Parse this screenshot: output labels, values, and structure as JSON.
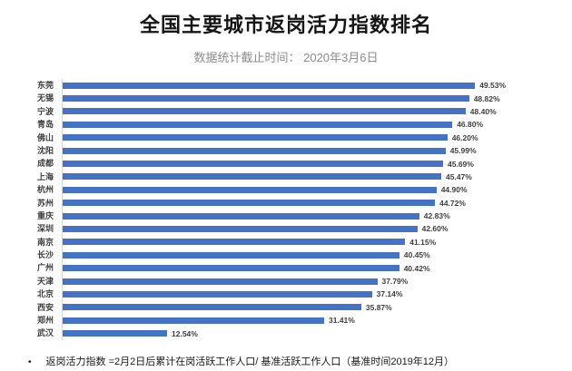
{
  "header": {
    "title": "全国主要城市返岗活力指数排名",
    "subtitle": "数据统计截止时间：  2020年3月6日"
  },
  "chart_data": {
    "type": "bar",
    "orientation": "horizontal",
    "title": "全国主要城市返岗活力指数排名",
    "subtitle": "数据统计截止时间：  2020年3月6日",
    "categories": [
      "东莞",
      "无锡",
      "宁波",
      "青岛",
      "佛山",
      "沈阳",
      "成都",
      "上海",
      "杭州",
      "苏州",
      "重庆",
      "深圳",
      "南京",
      "长沙",
      "广州",
      "天津",
      "北京",
      "西安",
      "郑州",
      "武汉"
    ],
    "values": [
      49.53,
      48.82,
      48.4,
      46.8,
      46.2,
      45.99,
      45.69,
      45.47,
      44.9,
      44.72,
      42.83,
      42.6,
      41.15,
      40.45,
      40.42,
      37.79,
      37.14,
      35.87,
      31.41,
      12.54
    ],
    "value_labels": [
      "49.53%",
      "48.82%",
      "48.40%",
      "46.80%",
      "46.20%",
      "45.99%",
      "45.69%",
      "45.47%",
      "44.90%",
      "44.72%",
      "42.83%",
      "42.60%",
      "41.15%",
      "40.45%",
      "40.42%",
      "37.79%",
      "37.14%",
      "35.87%",
      "31.41%",
      "12.54%"
    ],
    "xlabel": "",
    "ylabel": "",
    "xlim": [
      0,
      55
    ],
    "grid": false,
    "legend": false,
    "data_labels": "outside-end"
  },
  "footer": {
    "bullet": "•",
    "note": "返岗活力指数 =2月2日后累计在岗活跃工作人口/ 基准活跃工作人口（基准时间2019年12月）"
  },
  "colors": {
    "bar": "#4472C4",
    "title_text": "#151515",
    "subtitle_text": "#8c8c8c",
    "label_text": "#3f3f3f",
    "axis_line": "#d9d9d9",
    "background": "#ffffff"
  }
}
